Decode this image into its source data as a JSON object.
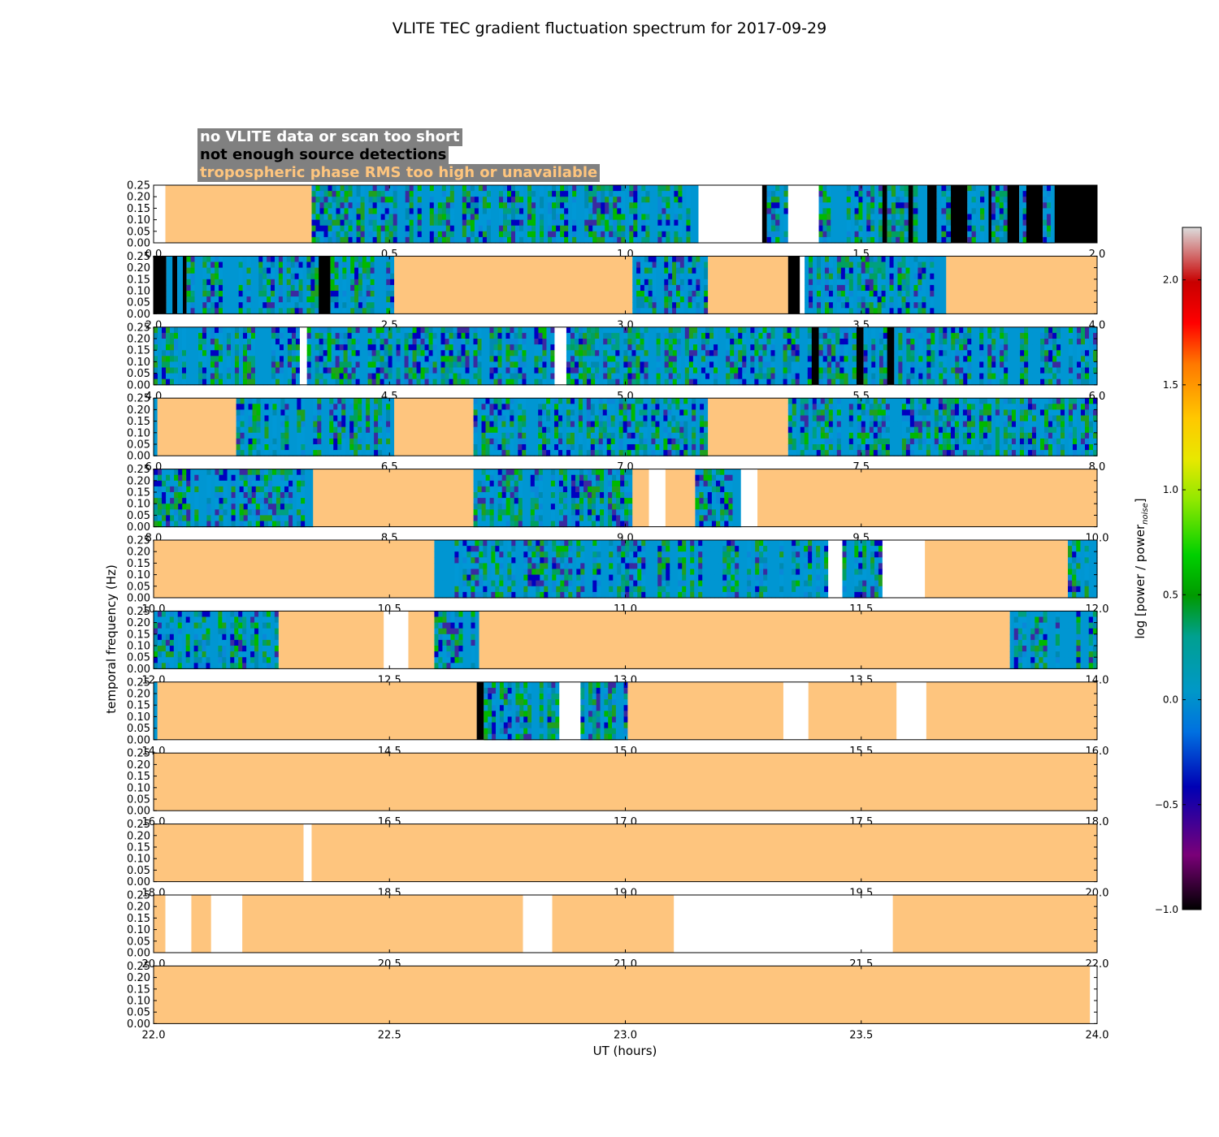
{
  "chart_data": {
    "type": "heatmap",
    "title": "VLITE TEC gradient fluctuation spectrum for 2017-09-29",
    "xlabel": "UT (hours)",
    "ylabel": "temporal frequency (Hz)",
    "ylim": [
      0.0,
      0.25
    ],
    "yticks": [
      "0.00",
      "0.05",
      "0.10",
      "0.15",
      "0.20",
      "0.25"
    ],
    "legend": [
      {
        "label": "no VLITE data or scan too short",
        "color": "#ffffff"
      },
      {
        "label": "not enough source detections",
        "color": "#000000"
      },
      {
        "label": "tropospheric phase RMS too high or unavailable",
        "color": "#fec57e"
      }
    ],
    "colorbar": {
      "label": "log [power / power",
      "label_sub": "noise",
      "label_end": "]",
      "range": [
        -1.0,
        2.25
      ],
      "ticks": [
        "−1.0",
        "−0.5",
        "0.0",
        "0.5",
        "1.0",
        "1.5",
        "2.0"
      ],
      "tick_values": [
        -1.0,
        -0.5,
        0.0,
        0.5,
        1.0,
        1.5,
        2.0
      ]
    },
    "panels": [
      {
        "range": [
          0,
          2
        ],
        "ticks": [
          "0.0",
          "0.5",
          "1.0",
          "1.5",
          "2.0"
        ],
        "segments": [
          [
            "white",
            0,
            0.025
          ],
          [
            "tropo",
            0.025,
            0.335
          ],
          [
            "data",
            0.335,
            1.155
          ],
          [
            "white",
            1.155,
            1.29
          ],
          [
            "nodet",
            1.29,
            1.3
          ],
          [
            "data",
            1.3,
            1.345
          ],
          [
            "white",
            1.345,
            1.41
          ],
          [
            "data",
            1.41,
            1.545
          ],
          [
            "nodet",
            1.545,
            1.555
          ],
          [
            "data",
            1.555,
            1.6
          ],
          [
            "nodet",
            1.6,
            1.61
          ],
          [
            "data",
            1.61,
            1.64
          ],
          [
            "nodet",
            1.64,
            1.66
          ],
          [
            "data",
            1.66,
            1.69
          ],
          [
            "nodet",
            1.69,
            1.725
          ],
          [
            "data",
            1.725,
            1.77
          ],
          [
            "nodet",
            1.77,
            1.776
          ],
          [
            "data",
            1.776,
            1.81
          ],
          [
            "nodet",
            1.81,
            1.835
          ],
          [
            "data",
            1.835,
            1.85
          ],
          [
            "nodet",
            1.85,
            1.885
          ],
          [
            "data",
            1.885,
            1.91
          ],
          [
            "nodet",
            1.91,
            2
          ]
        ]
      },
      {
        "range": [
          2,
          4
        ],
        "ticks": [
          "2.0",
          "2.5",
          "3.0",
          "3.5",
          "4.0"
        ],
        "segments": [
          [
            "nodet",
            2,
            2.027
          ],
          [
            "data",
            2.027,
            2.04
          ],
          [
            "nodet",
            2.04,
            2.05
          ],
          [
            "data",
            2.05,
            2.062
          ],
          [
            "nodet",
            2.062,
            2.07
          ],
          [
            "data",
            2.07,
            2.35
          ],
          [
            "nodet",
            2.35,
            2.375
          ],
          [
            "data",
            2.375,
            2.51
          ],
          [
            "tropo",
            2.51,
            3.015
          ],
          [
            "data",
            3.015,
            3.175
          ],
          [
            "tropo",
            3.175,
            3.345
          ],
          [
            "nodet",
            3.345,
            3.37
          ],
          [
            "white",
            3.37,
            3.38
          ],
          [
            "data",
            3.38,
            3.68
          ],
          [
            "tropo",
            3.68,
            4
          ]
        ]
      },
      {
        "range": [
          4,
          6
        ],
        "ticks": [
          "4.0",
          "4.5",
          "5.0",
          "5.5",
          "6.0"
        ],
        "segments": [
          [
            "data",
            4,
            4.31
          ],
          [
            "white",
            4.31,
            4.325
          ],
          [
            "data",
            4.325,
            4.85
          ],
          [
            "white",
            4.85,
            4.875
          ],
          [
            "data",
            4.875,
            5.395
          ],
          [
            "nodet",
            5.395,
            5.41
          ],
          [
            "data",
            5.41,
            5.49
          ],
          [
            "nodet",
            5.49,
            5.505
          ],
          [
            "data",
            5.505,
            5.555
          ],
          [
            "nodet",
            5.555,
            5.57
          ],
          [
            "data",
            5.57,
            6
          ]
        ]
      },
      {
        "range": [
          6,
          8
        ],
        "ticks": [
          "6.0",
          "6.5",
          "7.0",
          "7.5",
          "8.0"
        ],
        "segments": [
          [
            "data",
            6,
            6.008
          ],
          [
            "tropo",
            6.008,
            6.175
          ],
          [
            "data",
            6.175,
            6.51
          ],
          [
            "tropo",
            6.51,
            6.678
          ],
          [
            "data",
            6.678,
            7.175
          ],
          [
            "tropo",
            7.175,
            7.345
          ],
          [
            "data",
            7.345,
            8
          ]
        ]
      },
      {
        "range": [
          8,
          10
        ],
        "ticks": [
          "8.0",
          "8.5",
          "9.0",
          "9.5",
          "10.0"
        ],
        "segments": [
          [
            "data",
            8,
            8.338
          ],
          [
            "tropo",
            8.338,
            8.678
          ],
          [
            "data",
            8.678,
            9.015
          ],
          [
            "tropo",
            9.015,
            9.05
          ],
          [
            "white",
            9.05,
            9.085
          ],
          [
            "tropo",
            9.085,
            9.148
          ],
          [
            "data",
            9.148,
            9.245
          ],
          [
            "white",
            9.245,
            9.28
          ],
          [
            "tropo",
            9.28,
            10
          ]
        ]
      },
      {
        "range": [
          10,
          12
        ],
        "ticks": [
          "10.0",
          "10.5",
          "11.0",
          "11.5",
          "12.0"
        ],
        "segments": [
          [
            "tropo",
            10,
            10.595
          ],
          [
            "data",
            10.595,
            11.43
          ],
          [
            "white",
            11.43,
            11.46
          ],
          [
            "data",
            11.46,
            11.545
          ],
          [
            "white",
            11.545,
            11.635
          ],
          [
            "tropo",
            11.635,
            11.938
          ],
          [
            "data",
            11.938,
            12
          ]
        ]
      },
      {
        "range": [
          12,
          14
        ],
        "ticks": [
          "12.0",
          "12.5",
          "13.0",
          "13.5",
          "14.0"
        ],
        "segments": [
          [
            "data",
            12,
            12.265
          ],
          [
            "tropo",
            12.265,
            12.488
          ],
          [
            "white",
            12.488,
            12.54
          ],
          [
            "tropo",
            12.54,
            12.595
          ],
          [
            "data",
            12.595,
            12.69
          ],
          [
            "tropo",
            12.69,
            13.815
          ],
          [
            "data",
            13.815,
            14
          ]
        ]
      },
      {
        "range": [
          14,
          16
        ],
        "ticks": [
          "14.0",
          "14.5",
          "15.0",
          "15.5",
          "16.0"
        ],
        "segments": [
          [
            "data",
            14,
            14.008
          ],
          [
            "tropo",
            14.008,
            14.685
          ],
          [
            "nodet",
            14.685,
            14.7
          ],
          [
            "data",
            14.7,
            14.86
          ],
          [
            "white",
            14.86,
            14.905
          ],
          [
            "data",
            14.905,
            15.005
          ],
          [
            "tropo",
            15.005,
            15.335
          ],
          [
            "white",
            15.335,
            15.388
          ],
          [
            "tropo",
            15.388,
            15.575
          ],
          [
            "white",
            15.575,
            15.638
          ],
          [
            "tropo",
            15.638,
            16
          ]
        ]
      },
      {
        "range": [
          16,
          18
        ],
        "ticks": [
          "16.0",
          "16.5",
          "17.0",
          "17.5",
          "18.0"
        ],
        "segments": [
          [
            "tropo",
            16,
            18
          ]
        ]
      },
      {
        "range": [
          18,
          20
        ],
        "ticks": [
          "18.0",
          "18.5",
          "19.0",
          "19.5",
          "20.0"
        ],
        "segments": [
          [
            "tropo",
            18,
            18.318
          ],
          [
            "white",
            18.318,
            18.335
          ],
          [
            "tropo",
            18.335,
            20
          ]
        ]
      },
      {
        "range": [
          20,
          22
        ],
        "ticks": [
          "20.0",
          "20.5",
          "21.0",
          "21.5",
          "22.0"
        ],
        "segments": [
          [
            "tropo",
            20,
            20.025
          ],
          [
            "white",
            20.025,
            20.08
          ],
          [
            "tropo",
            20.08,
            20.122
          ],
          [
            "white",
            20.122,
            20.188
          ],
          [
            "tropo",
            20.188,
            20.783
          ],
          [
            "white",
            20.783,
            20.845
          ],
          [
            "tropo",
            20.845,
            21.103
          ],
          [
            "white",
            21.103,
            21.567
          ],
          [
            "tropo",
            21.567,
            22
          ]
        ]
      },
      {
        "range": [
          22,
          24
        ],
        "ticks": [
          "22.0",
          "22.5",
          "23.0",
          "23.5",
          "24.0"
        ],
        "segments": [
          [
            "tropo",
            22,
            23.985
          ],
          [
            "white",
            23.985,
            24
          ]
        ]
      }
    ]
  }
}
